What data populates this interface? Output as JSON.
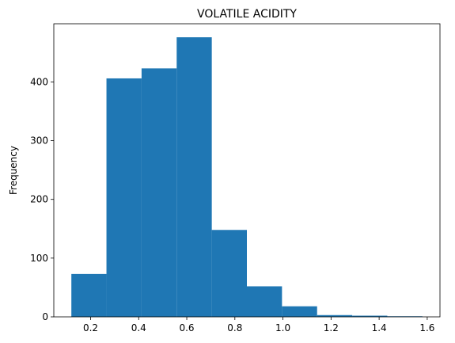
{
  "chart_data": {
    "type": "bar",
    "subtype": "histogram",
    "title": "VOLATILE ACIDITY",
    "xlabel": "",
    "ylabel": "Frequency",
    "bin_edges": [
      0.12,
      0.266,
      0.412,
      0.558,
      0.704,
      0.85,
      0.996,
      1.142,
      1.288,
      1.434,
      1.58
    ],
    "values": [
      73,
      406,
      423,
      476,
      148,
      52,
      18,
      3,
      2,
      1
    ],
    "xlim": [
      0.047,
      1.653
    ],
    "ylim": [
      0,
      499
    ],
    "xticks": [
      "0.2",
      "0.4",
      "0.6",
      "0.8",
      "1.0",
      "1.2",
      "1.4",
      "1.6"
    ],
    "yticks": [
      "0",
      "100",
      "200",
      "300",
      "400"
    ],
    "grid": false,
    "legend": "none",
    "bar_color": "#1f77b4"
  }
}
